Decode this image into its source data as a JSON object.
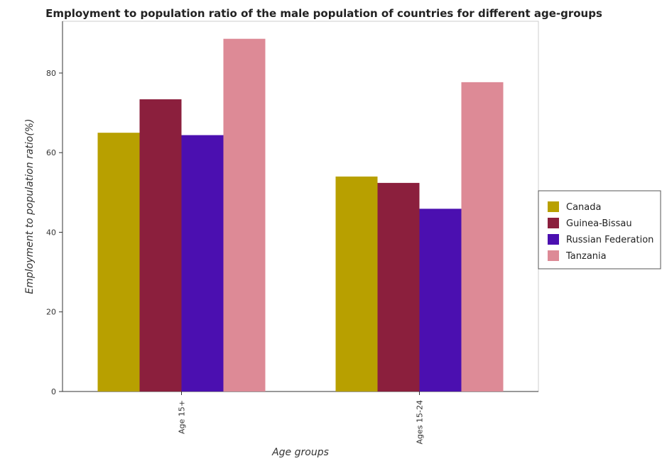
{
  "chart_data": {
    "type": "bar",
    "title": "Employment to population ratio of the male population of countries for different age-groups",
    "xlabel": "Age groups",
    "ylabel": "Employment to population ratio(%)",
    "categories": [
      "Age 15+",
      "Ages 15-24"
    ],
    "ylim": [
      0,
      93
    ],
    "yticks": [
      "0",
      "20",
      "40",
      "60",
      "80"
    ],
    "series": [
      {
        "name": "Canada",
        "color": "#b8a000",
        "values": [
          65.0,
          54.0
        ]
      },
      {
        "name": "Guinea-Bissau",
        "color": "#8b1f3d",
        "values": [
          73.4,
          52.4
        ]
      },
      {
        "name": "Russian Federation",
        "color": "#4b0fb0",
        "values": [
          64.4,
          45.9
        ]
      },
      {
        "name": "Tanzania",
        "color": "#dd8a96",
        "values": [
          88.6,
          77.7
        ]
      }
    ],
    "legend_position": "right",
    "grid": false
  }
}
